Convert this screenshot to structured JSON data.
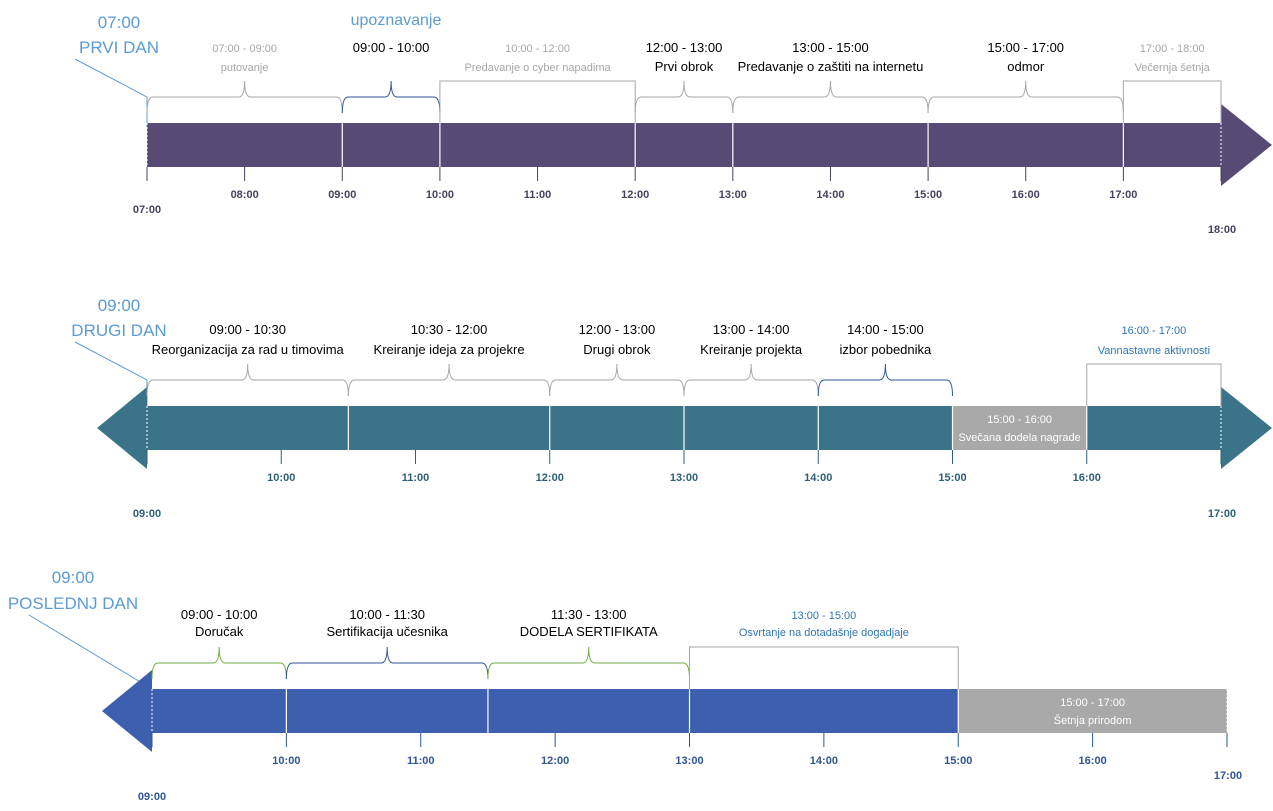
{
  "colors": {
    "day1_bar": "#574A74",
    "day2_bar": "#3B7488",
    "day3_bar": "#3C60AE",
    "gray_block": "#A9A9A9",
    "day_title": "#5B9BD5",
    "tick_day1": "#44435E",
    "tick_day2": "#2E5F74",
    "tick_day3": "#2F5597",
    "brace_gray": "#A6A6A6",
    "brace_blue": "#2F5597",
    "brace_green": "#70AD47",
    "text_black": "#000000",
    "text_gray": "#A6A6A6",
    "text_blue": "#2E75B6"
  },
  "extra_labels": [
    {
      "text": "upoznavanje",
      "color": "day_title"
    }
  ],
  "timelines": [
    {
      "id": "day1",
      "title_time": "07:00",
      "title_name": "PRVI DAN",
      "color": "day1_bar",
      "tick_color": "tick_day1",
      "arrow": "right",
      "time_start": "07:00",
      "time_end": "18:00",
      "ticks": [
        "08:00",
        "09:00",
        "10:00",
        "11:00",
        "12:00",
        "13:00",
        "14:00",
        "15:00",
        "16:00",
        "17:00"
      ],
      "dividers": [
        "09:00",
        "10:00",
        "12:00",
        "13:00",
        "15:00",
        "17:00"
      ],
      "end_label": "18:00",
      "start_label": "07:00",
      "events": [
        {
          "start": "07:00",
          "end": "09:00",
          "time": "07:00 - 09:00",
          "label": "putovanje",
          "bracket": "brace",
          "bracket_color": "brace_gray",
          "text_color": "text_gray"
        },
        {
          "start": "09:00",
          "end": "10:00",
          "time": "09:00 - 10:00",
          "label": "",
          "bracket": "brace",
          "bracket_color": "brace_blue",
          "text_color": "text_black"
        },
        {
          "start": "10:00",
          "end": "12:00",
          "time": "10:00 - 12:00",
          "label": "Predavanje o cyber napadima",
          "bracket": "box",
          "bracket_color": "brace_gray",
          "text_color": "text_gray"
        },
        {
          "start": "12:00",
          "end": "13:00",
          "time": "12:00 - 13:00",
          "label": "Prvi obrok",
          "bracket": "brace",
          "bracket_color": "brace_gray",
          "text_color": "text_black"
        },
        {
          "start": "13:00",
          "end": "15:00",
          "time": "13:00 - 15:00",
          "label": "Predavanje o zaštiti na internetu",
          "bracket": "brace",
          "bracket_color": "brace_gray",
          "text_color": "text_black"
        },
        {
          "start": "15:00",
          "end": "17:00",
          "time": "15:00 - 17:00",
          "label": "odmor",
          "bracket": "brace",
          "bracket_color": "brace_gray",
          "text_color": "text_black"
        },
        {
          "start": "17:00",
          "end": "18:00",
          "time": "17:00 - 18:00",
          "label": "Večernja šetnja",
          "bracket": "box",
          "bracket_color": "brace_gray",
          "text_color": "text_gray"
        }
      ],
      "blocks": []
    },
    {
      "id": "day2",
      "title_time": "09:00",
      "title_name": "DRUGI DAN",
      "color": "day2_bar",
      "tick_color": "tick_day2",
      "arrow": "both",
      "time_start": "09:00",
      "time_end": "17:00",
      "ticks": [
        "10:00",
        "11:00",
        "12:00",
        "13:00",
        "14:00",
        "15:00",
        "16:00"
      ],
      "dividers": [
        "10:30",
        "12:00",
        "13:00",
        "14:00",
        "15:00",
        "16:00"
      ],
      "start_label": "09:00",
      "end_label": "17:00",
      "events": [
        {
          "start": "09:00",
          "end": "10:30",
          "time": "09:00 - 10:30",
          "label": "Reorganizacija za rad u timovima",
          "bracket": "brace",
          "bracket_color": "brace_gray",
          "text_color": "text_black"
        },
        {
          "start": "10:30",
          "end": "12:00",
          "time": "10:30 - 12:00",
          "label": "Kreiranje ideja za projekre",
          "bracket": "brace",
          "bracket_color": "brace_gray",
          "text_color": "text_black"
        },
        {
          "start": "12:00",
          "end": "13:00",
          "time": "12:00 - 13:00",
          "label": "Drugi obrok",
          "bracket": "brace",
          "bracket_color": "brace_gray",
          "text_color": "text_black"
        },
        {
          "start": "13:00",
          "end": "14:00",
          "time": "13:00 - 14:00",
          "label": "Kreiranje projekta",
          "bracket": "brace",
          "bracket_color": "brace_gray",
          "text_color": "text_black"
        },
        {
          "start": "14:00",
          "end": "15:00",
          "time": "14:00 - 15:00",
          "label": "izbor pobednika",
          "bracket": "brace",
          "bracket_color": "brace_blue",
          "text_color": "text_black"
        },
        {
          "start": "16:00",
          "end": "17:00",
          "time": "16:00 - 17:00",
          "label": "Vannastavne aktivnosti",
          "bracket": "box",
          "bracket_color": "brace_gray",
          "text_color": "text_blue"
        }
      ],
      "blocks": [
        {
          "start": "15:00",
          "end": "16:00",
          "time": "15:00 - 16:00",
          "label": "Svečana dodela nagrade"
        }
      ]
    },
    {
      "id": "day3",
      "title_time": "09:00",
      "title_name": "POSLEDNJ DAN",
      "color": "day3_bar",
      "tick_color": "tick_day3",
      "arrow": "left",
      "time_start": "09:00",
      "time_end": "17:00",
      "ticks": [
        "10:00",
        "11:00",
        "12:00",
        "13:00",
        "14:00",
        "15:00",
        "16:00"
      ],
      "dividers": [
        "10:00",
        "11:30",
        "13:00",
        "15:00"
      ],
      "start_label": "09:00",
      "end_label": "17:00",
      "events": [
        {
          "start": "09:00",
          "end": "10:00",
          "time": "09:00 - 10:00",
          "label": "Doručak",
          "bracket": "brace",
          "bracket_color": "brace_green",
          "text_color": "text_black"
        },
        {
          "start": "10:00",
          "end": "11:30",
          "time": "10:00 - 11:30",
          "label": "Sertifikacija učesnika",
          "bracket": "brace",
          "bracket_color": "brace_blue",
          "text_color": "text_black"
        },
        {
          "start": "11:30",
          "end": "13:00",
          "time": "11:30 - 13:00",
          "label": "DODELA SERTIFIKATA",
          "bracket": "brace",
          "bracket_color": "brace_green",
          "text_color": "text_black"
        },
        {
          "start": "13:00",
          "end": "15:00",
          "time": "13:00 - 15:00",
          "label": "Osvrtanje na dotadašnje dogadjaje",
          "bracket": "box",
          "bracket_color": "brace_gray",
          "text_color": "text_blue"
        }
      ],
      "blocks": [
        {
          "start": "15:00",
          "end": "17:00",
          "time": "15:00 - 17:00",
          "label": "Šetnja prirodom"
        }
      ]
    }
  ]
}
